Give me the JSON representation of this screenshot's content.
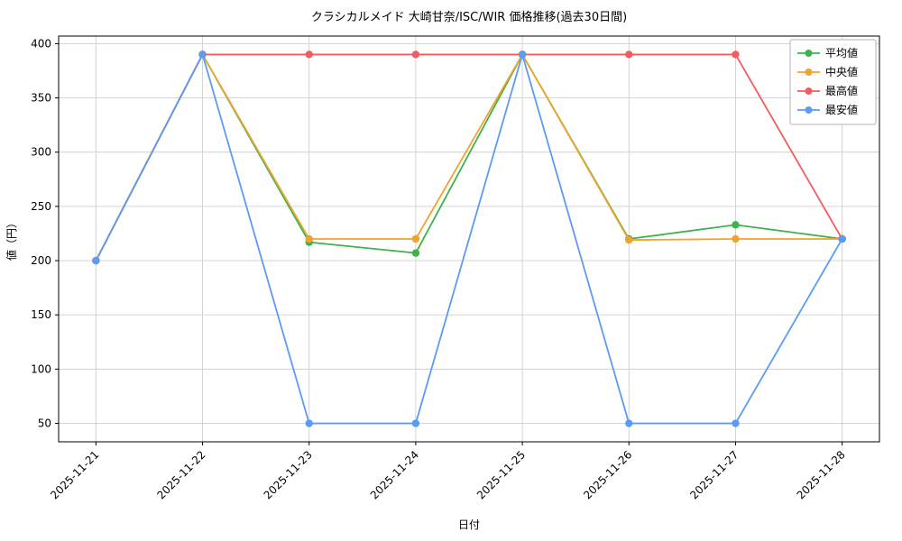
{
  "chart_data": {
    "type": "line",
    "title": "クラシカルメイド 大崎甘奈/ISC/WIR 価格推移(過去30日間)",
    "xlabel": "日付",
    "ylabel": "値（円）",
    "categories": [
      "2025-11-21",
      "2025-11-22",
      "2025-11-23",
      "2025-11-24",
      "2025-11-25",
      "2025-11-26",
      "2025-11-27",
      "2025-11-28"
    ],
    "yticks": [
      50,
      100,
      150,
      200,
      250,
      300,
      350,
      400
    ],
    "ylim": [
      33,
      407
    ],
    "grid": true,
    "legend_position": "upper right",
    "marker": "circle",
    "series": [
      {
        "name": "平均値",
        "color": "#3cb44b",
        "values": [
          200,
          390,
          217,
          207,
          390,
          220,
          233,
          220
        ]
      },
      {
        "name": "中央値",
        "color": "#f0a32f",
        "values": [
          200,
          390,
          220,
          220,
          390,
          219,
          220,
          220
        ]
      },
      {
        "name": "最高値",
        "color": "#f25c5c",
        "values": [
          200,
          390,
          390,
          390,
          390,
          390,
          390,
          220
        ]
      },
      {
        "name": "最安値",
        "color": "#5b9cf2",
        "values": [
          200,
          390,
          50,
          50,
          390,
          50,
          50,
          220
        ]
      }
    ]
  }
}
